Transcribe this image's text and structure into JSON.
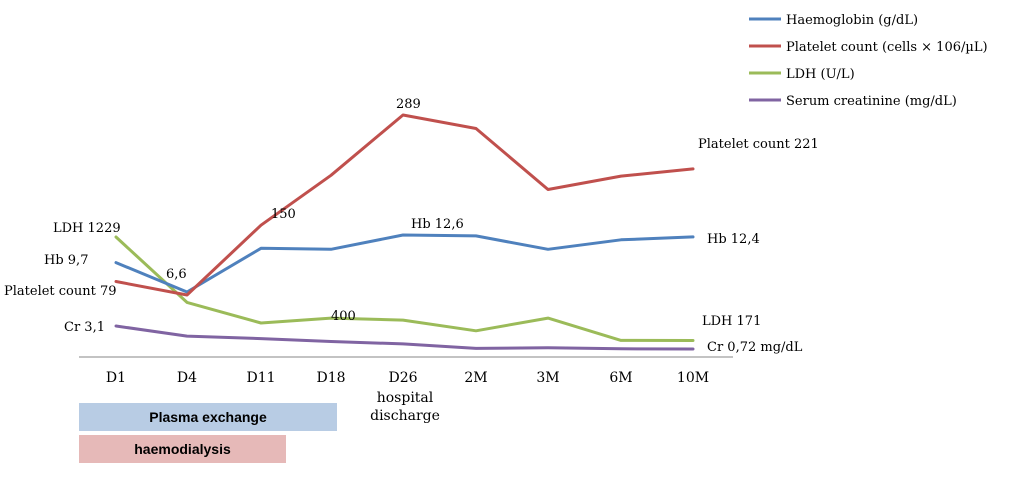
{
  "chart_data": {
    "type": "line",
    "categories": [
      "D1",
      "D4",
      "D11",
      "D18",
      "D26",
      "2M",
      "3M",
      "6M",
      "10M"
    ],
    "category_sublabels": [
      "",
      "",
      "",
      "",
      "hospital discharge",
      "",
      "",
      "",
      ""
    ],
    "series": [
      {
        "name": "Haemoglobin (g/dL)",
        "color": "#4f81bd",
        "values": [
          9.7,
          6.6,
          11.2,
          11.1,
          12.6,
          12.5,
          11.1,
          12.1,
          12.4
        ]
      },
      {
        "name": "Platelet count (cells × 106/µL)",
        "color": "#c0504d",
        "values": [
          79,
          62,
          150,
          213,
          289,
          272,
          195,
          212,
          221
        ]
      },
      {
        "name": "LDH (U/L)",
        "color": "#9bbb59",
        "values": [
          1229,
          560,
          350,
          400,
          380,
          270,
          400,
          172,
          171
        ]
      },
      {
        "name": "Serum creatinine (mg/dL)",
        "color": "#8064a2",
        "values": [
          3.1,
          2.05,
          1.8,
          1.5,
          1.25,
          0.78,
          0.84,
          0.74,
          0.72
        ]
      }
    ],
    "annotations": {
      "hb_first": "Hb 9,7",
      "hb_min": "6,6",
      "hb_peak": "Hb 12,6",
      "hb_last": "Hb 12,4",
      "plt_first": "Platelet count 79",
      "plt_d11": "150",
      "plt_peak": "289",
      "plt_last": "Platelet count 221",
      "ldh_first": "LDH 1229",
      "ldh_d18": "400",
      "ldh_last": "LDH 171",
      "cr_first": "Cr 3,1",
      "cr_last": "Cr 0,72 mg/dL"
    },
    "legend_position": "top-right",
    "grid": false
  },
  "timeline": {
    "plasma_exchange": "Plasma exchange",
    "haemodialysis": "haemodialysis"
  }
}
